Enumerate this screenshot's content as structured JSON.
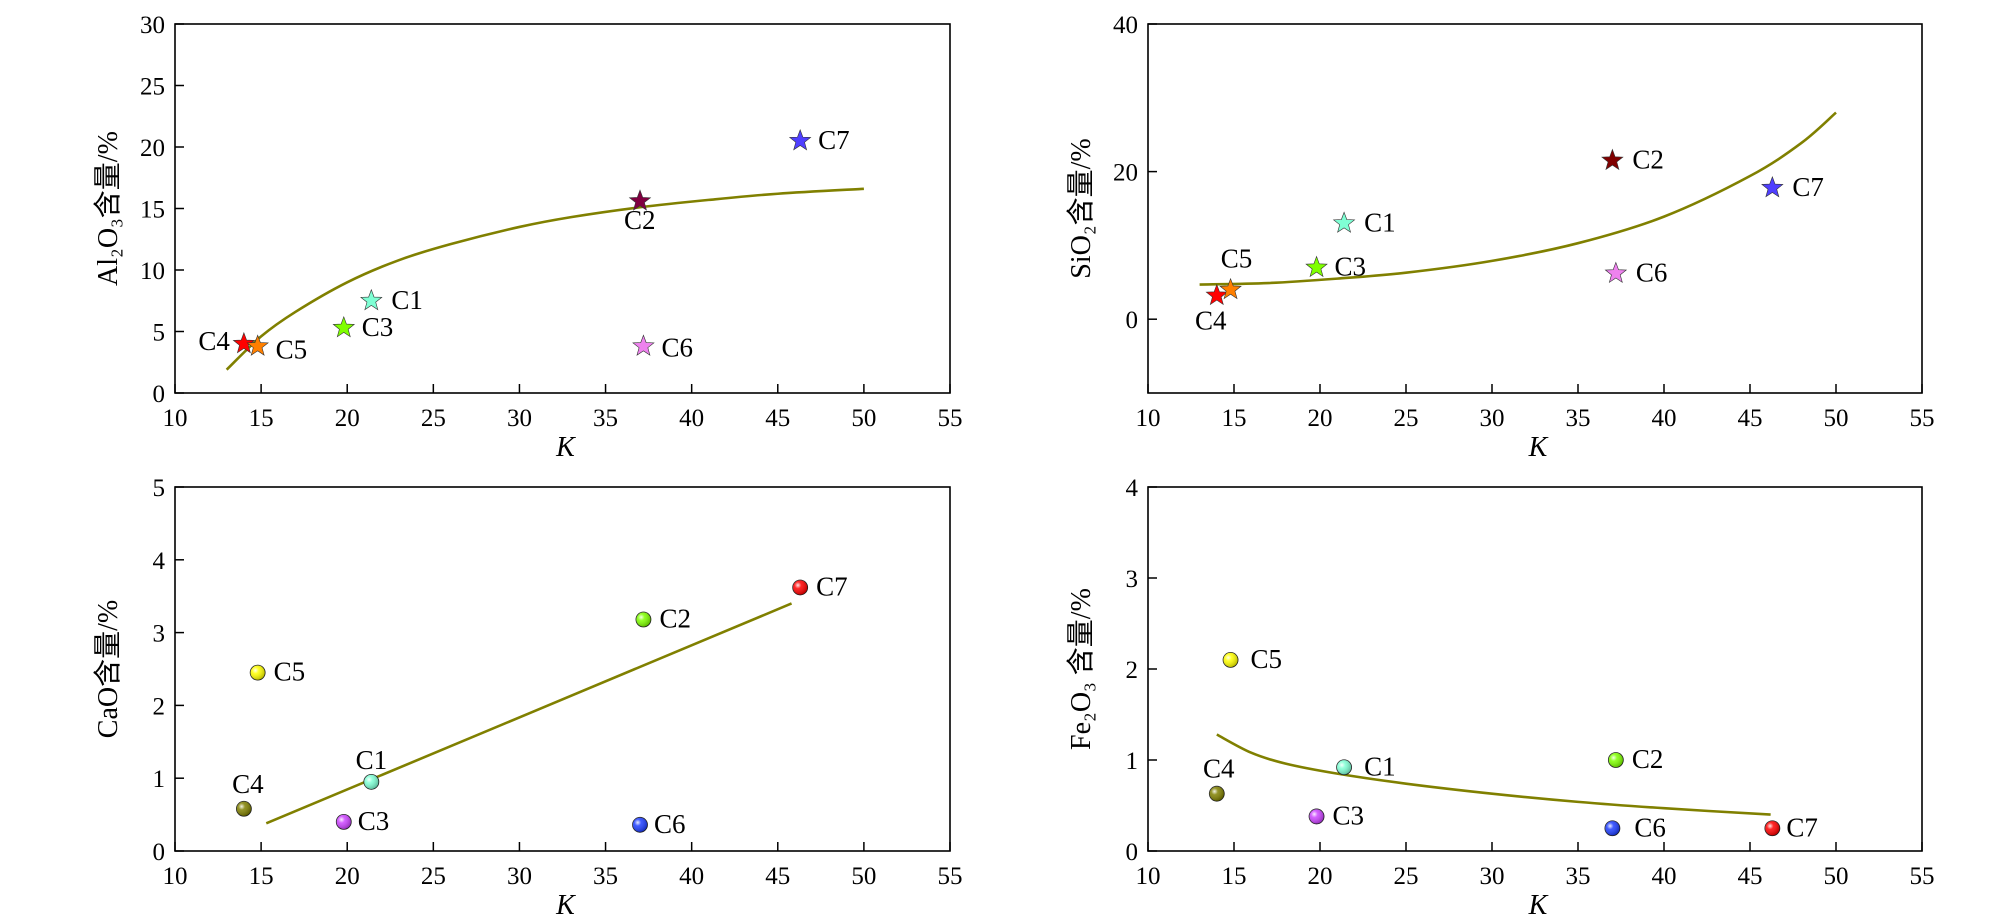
{
  "chart_data": [
    {
      "id": "al2o3",
      "type": "scatter",
      "ylabel": "Al₂O₃含量/%",
      "xlabel": "K",
      "xlim": [
        10,
        55
      ],
      "ylim": [
        0,
        30
      ],
      "xticks": [
        "10",
        "15",
        "20",
        "25",
        "30",
        "35",
        "40",
        "45",
        "50",
        "55"
      ],
      "yticks": [
        "0",
        "5",
        "10",
        "15",
        "20",
        "25",
        "30"
      ],
      "marker": "star",
      "points": [
        {
          "label": "C1",
          "x": 21.4,
          "y": 7.5,
          "color": "#7fffd4"
        },
        {
          "label": "C2",
          "x": 37.0,
          "y": 15.6,
          "color": "#800040"
        },
        {
          "label": "C3",
          "x": 19.8,
          "y": 5.3,
          "color": "#7fff00"
        },
        {
          "label": "C4",
          "x": 14.0,
          "y": 4.0,
          "color": "#ff0000"
        },
        {
          "label": "C5",
          "x": 14.8,
          "y": 3.8,
          "color": "#ff7f00"
        },
        {
          "label": "C6",
          "x": 37.2,
          "y": 3.8,
          "color": "#ee82ee"
        },
        {
          "label": "C7",
          "x": 46.3,
          "y": 20.5,
          "color": "#4f3fff"
        }
      ],
      "fit": {
        "color": "#808000",
        "x": [
          13.0,
          15,
          17,
          20,
          23,
          26,
          30,
          33,
          37,
          41,
          45,
          50
        ],
        "y": [
          1.9,
          4.6,
          6.6,
          9.0,
          10.8,
          12.1,
          13.5,
          14.3,
          15.1,
          15.7,
          16.2,
          16.6
        ]
      }
    },
    {
      "id": "sio2",
      "type": "scatter",
      "ylabel": "SiO₂含量/%",
      "xlabel": "K",
      "xlim": [
        10,
        55
      ],
      "ylim": [
        -10,
        40
      ],
      "xticks": [
        "10",
        "15",
        "20",
        "25",
        "30",
        "35",
        "40",
        "45",
        "50",
        "55"
      ],
      "yticks": [
        "0",
        "20",
        "40"
      ],
      "ytick_values": [
        0,
        20,
        40
      ],
      "marker": "star",
      "points": [
        {
          "label": "C1",
          "x": 21.4,
          "y": 13.0,
          "color": "#7fffd4"
        },
        {
          "label": "C2",
          "x": 37.0,
          "y": 21.5,
          "color": "#800000"
        },
        {
          "label": "C3",
          "x": 19.8,
          "y": 7.0,
          "color": "#7fff00"
        },
        {
          "label": "C4",
          "x": 14.0,
          "y": 3.2,
          "color": "#ff0000"
        },
        {
          "label": "C5",
          "x": 14.8,
          "y": 4.0,
          "color": "#ff7f00"
        },
        {
          "label": "C6",
          "x": 37.2,
          "y": 6.2,
          "color": "#ee82ee"
        },
        {
          "label": "C7",
          "x": 46.3,
          "y": 17.8,
          "color": "#4f3fff"
        }
      ],
      "fit": {
        "color": "#808000",
        "x": [
          13.0,
          17,
          21,
          25,
          30,
          35,
          40,
          45,
          48,
          50
        ],
        "y": [
          4.7,
          4.9,
          5.5,
          6.3,
          7.9,
          10.3,
          13.9,
          19.4,
          23.9,
          28.0
        ]
      }
    },
    {
      "id": "cao",
      "type": "scatter",
      "ylabel": "CaO含量/%",
      "xlabel": "K",
      "xlim": [
        10,
        55
      ],
      "ylim": [
        0,
        5
      ],
      "xticks": [
        "10",
        "15",
        "20",
        "25",
        "30",
        "35",
        "40",
        "45",
        "50",
        "55"
      ],
      "yticks": [
        "0",
        "1",
        "2",
        "3",
        "4",
        "5"
      ],
      "marker": "ball",
      "points": [
        {
          "label": "C1",
          "x": 21.4,
          "y": 0.95,
          "color": "#7fffd4"
        },
        {
          "label": "C2",
          "x": 37.2,
          "y": 3.18,
          "color": "#7fff00"
        },
        {
          "label": "C3",
          "x": 19.8,
          "y": 0.4,
          "color": "#cc44ff"
        },
        {
          "label": "C4",
          "x": 14.0,
          "y": 0.58,
          "color": "#808000"
        },
        {
          "label": "C5",
          "x": 14.8,
          "y": 2.45,
          "color": "#ffff00"
        },
        {
          "label": "C6",
          "x": 37.0,
          "y": 0.36,
          "color": "#1f3fff"
        },
        {
          "label": "C7",
          "x": 46.3,
          "y": 3.62,
          "color": "#ff0000"
        }
      ],
      "fit": {
        "color": "#808000",
        "x": [
          15.3,
          45.8
        ],
        "y": [
          0.38,
          3.4
        ]
      }
    },
    {
      "id": "fe2o3",
      "type": "scatter",
      "ylabel": "Fe₂O₃ 含量/%",
      "xlabel": "K",
      "xlim": [
        10,
        55
      ],
      "ylim": [
        0,
        4
      ],
      "xticks": [
        "10",
        "15",
        "20",
        "25",
        "30",
        "35",
        "40",
        "45",
        "50",
        "55"
      ],
      "yticks": [
        "0",
        "1",
        "2",
        "3",
        "4"
      ],
      "marker": "ball",
      "points": [
        {
          "label": "C1",
          "x": 21.4,
          "y": 0.92,
          "color": "#7fffd4"
        },
        {
          "label": "C2",
          "x": 37.2,
          "y": 1.0,
          "color": "#7fff00"
        },
        {
          "label": "C3",
          "x": 19.8,
          "y": 0.38,
          "color": "#cc44ff"
        },
        {
          "label": "C4",
          "x": 14.0,
          "y": 0.63,
          "color": "#808000"
        },
        {
          "label": "C5",
          "x": 14.8,
          "y": 2.1,
          "color": "#ffff00"
        },
        {
          "label": "C6",
          "x": 37.0,
          "y": 0.25,
          "color": "#1f3fff"
        },
        {
          "label": "C7",
          "x": 46.3,
          "y": 0.25,
          "color": "#ff0000"
        }
      ],
      "fit": {
        "color": "#808000",
        "x": [
          14.0,
          16,
          18,
          21,
          25,
          30,
          35,
          40,
          46.2
        ],
        "y": [
          1.28,
          1.08,
          0.96,
          0.85,
          0.74,
          0.63,
          0.54,
          0.47,
          0.4
        ]
      }
    }
  ]
}
